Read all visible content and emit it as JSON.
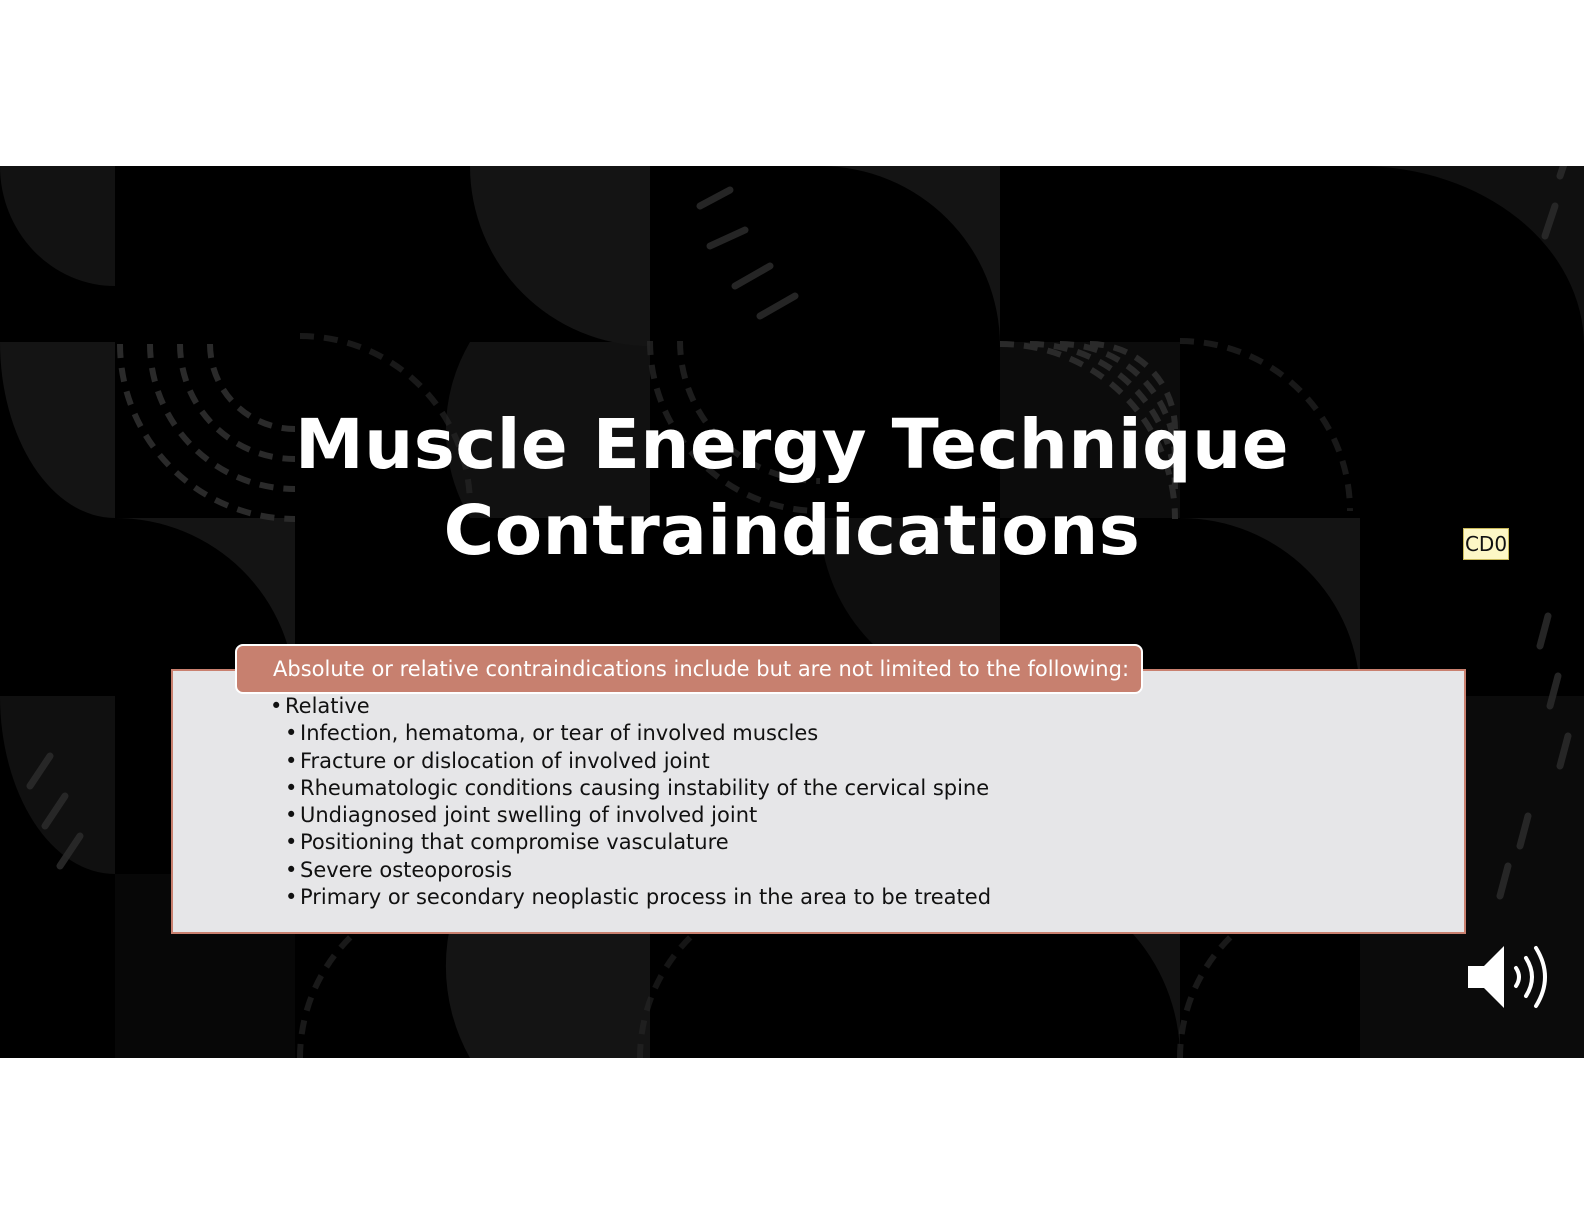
{
  "slide": {
    "title_line1": "Muscle Energy Technique",
    "title_line2": "Contraindications",
    "comment_marker": "CD0",
    "header": "Absolute or relative contraindications include but are not limited to the following:",
    "bullet_symbol": "•",
    "list": {
      "level1": "Relative",
      "items": [
        "Infection, hematoma, or tear of involved muscles",
        "Fracture or dislocation of involved joint",
        "Rheumatologic conditions causing instability of the cervical spine",
        "Undiagnosed joint swelling of involved joint",
        "Positioning that compromise vasculature",
        "Severe osteoporosis",
        "Primary or secondary neoplastic process in the area to be treated"
      ]
    },
    "colors": {
      "background": "#000000",
      "header_fill": "#c7806f",
      "box_fill": "#e6e6e8",
      "comment_fill": "#fdf7c6"
    },
    "icons": [
      "speaker-icon"
    ]
  }
}
